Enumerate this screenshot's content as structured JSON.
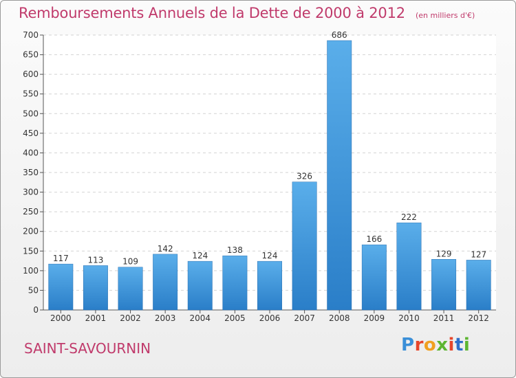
{
  "header": {
    "title": "Remboursements Annuels de la Dette de 2000 à 2012",
    "unit": "(en milliers d'€)"
  },
  "footer": {
    "commune": "SAINT-SAVOURNIN",
    "brand": "Proxiti"
  },
  "colors": {
    "accent": "#c03a6b",
    "bar_top": "#5aaeea",
    "bar_bottom": "#2a7ec8"
  },
  "chart_data": {
    "type": "bar",
    "title": "Remboursements Annuels de la Dette de 2000 à 2012",
    "xlabel": "",
    "ylabel": "",
    "ylim": [
      0,
      700
    ],
    "yticks": [
      0,
      50,
      100,
      150,
      200,
      250,
      300,
      350,
      400,
      450,
      500,
      550,
      600,
      650,
      700
    ],
    "categories": [
      "2000",
      "2001",
      "2002",
      "2003",
      "2004",
      "2005",
      "2006",
      "2007",
      "2008",
      "2009",
      "2010",
      "2011",
      "2012"
    ],
    "values": [
      117,
      113,
      109,
      142,
      124,
      138,
      124,
      326,
      686,
      166,
      222,
      129,
      127
    ],
    "grid": true,
    "data_labels": true
  }
}
